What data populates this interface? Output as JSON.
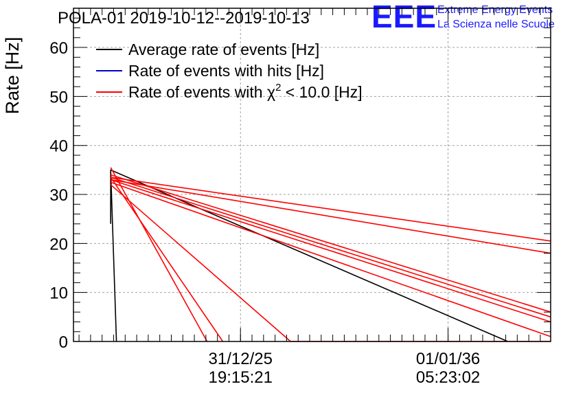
{
  "header": {
    "title": "POLA-01 2019-10-12--2019-10-13",
    "logo_big": "EEE",
    "logo_line1": "Extreme Energy Events",
    "logo_line2": "La Scienza nelle Scuole"
  },
  "colors": {
    "average": "#000000",
    "hits": "#0000cc",
    "chi2": "#ff0000",
    "grid": "#a0a0a0",
    "logo": "#1a1aff"
  },
  "chart_data": {
    "type": "line",
    "title": "POLA-01 2019-10-12--2019-10-13",
    "ylabel": "Rate [Hz]",
    "xlabel": "",
    "ylim": [
      0,
      68
    ],
    "xlim": [
      0,
      100
    ],
    "grid": true,
    "legend_position": "top-left",
    "yticks": [
      0,
      10,
      20,
      30,
      40,
      50,
      60
    ],
    "xticks": [
      {
        "x": 35,
        "line1": "31/12/25",
        "line2": "19:15:21"
      },
      {
        "x": 78.5,
        "line1": "01/01/36",
        "line2": "05:23:02"
      }
    ],
    "legend": [
      {
        "key": "average",
        "label": "Average rate of events [Hz]"
      },
      {
        "key": "hits",
        "label": "Rate of events with hits [Hz]"
      },
      {
        "key": "chi2",
        "label": "Rate of events with χ² < 10.0 [Hz]",
        "label_pre": "Rate of events with χ",
        "label_sup": "2",
        "label_post": " < 10.0 [Hz]"
      }
    ],
    "series": [
      {
        "name": "Average rate of events [Hz]",
        "key": "average",
        "segments": [
          [
            [
              7.8,
              24
            ],
            [
              7.8,
              35
            ],
            [
              9.0,
              0
            ]
          ],
          [
            [
              7.8,
              35
            ],
            [
              91.0,
              0
            ]
          ]
        ]
      },
      {
        "name": "Rate of events with hits [Hz]",
        "key": "hits",
        "segments": []
      },
      {
        "name": "Rate of events with χ² < 10.0 [Hz]",
        "key": "chi2",
        "segments": [
          [
            [
              7.8,
              33.5
            ],
            [
              100,
              20.5
            ]
          ],
          [
            [
              7.8,
              33.0
            ],
            [
              100,
              18.0
            ]
          ],
          [
            [
              7.8,
              34.0
            ],
            [
              100,
              6.0
            ]
          ],
          [
            [
              7.8,
              33.5
            ],
            [
              100,
              5.0
            ]
          ],
          [
            [
              7.8,
              33.0
            ],
            [
              100,
              4.0
            ]
          ],
          [
            [
              7.8,
              32.5
            ],
            [
              100,
              1.0
            ]
          ],
          [
            [
              7.8,
              35.5
            ],
            [
              28.0,
              0
            ]
          ],
          [
            [
              7.8,
              33.5
            ],
            [
              31.3,
              0
            ]
          ],
          [
            [
              7.8,
              32.0
            ],
            [
              45.5,
              0
            ]
          ],
          [
            [
              45.5,
              0
            ],
            [
              100,
              0
            ]
          ]
        ]
      }
    ]
  }
}
